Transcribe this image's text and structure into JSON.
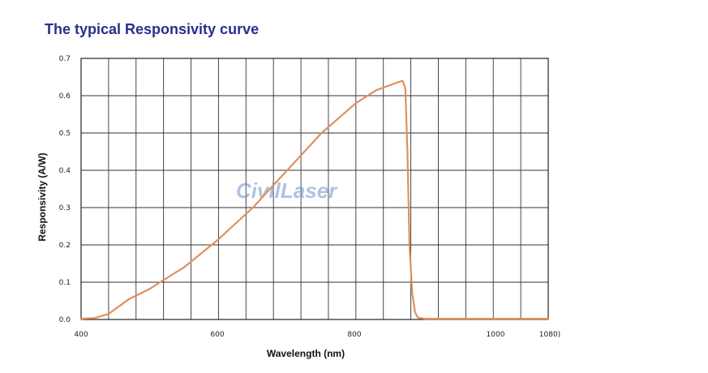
{
  "page": {
    "title": "The typical Responsivity curve",
    "watermark": "CivilLaser"
  },
  "chart_data": {
    "type": "line",
    "title": "The typical Responsivity curve",
    "xlabel": "Wavelength (nm)",
    "ylabel": "Responsivity (A/W)",
    "xlim": [
      400,
      1080
    ],
    "ylim": [
      0,
      0.7
    ],
    "x_tick_labels": [
      "400",
      "600",
      "800",
      "1000",
      "1080)"
    ],
    "x_tick_values": [
      400,
      600,
      800,
      1000,
      1080
    ],
    "y_tick_labels": [
      "0.0",
      "0.1",
      "0.2",
      "0.3",
      "0.4",
      "0.5",
      "0.6",
      "0.7"
    ],
    "y_tick_values": [
      0,
      0.1,
      0.2,
      0.3,
      0.4,
      0.5,
      0.6,
      0.7
    ],
    "grid": true,
    "line_color": "#e0905c",
    "series": [
      {
        "x": [
          400,
          420,
          440,
          470,
          500,
          515,
          550,
          600,
          650,
          700,
          750,
          800,
          830,
          860,
          868,
          872,
          875,
          878,
          882,
          886,
          890,
          900,
          950,
          1000,
          1080
        ],
        "y": [
          0.002,
          0.004,
          0.015,
          0.055,
          0.082,
          0.1,
          0.14,
          0.215,
          0.3,
          0.4,
          0.5,
          0.58,
          0.615,
          0.635,
          0.64,
          0.62,
          0.45,
          0.2,
          0.07,
          0.02,
          0.005,
          0.002,
          0.002,
          0.002,
          0.002
        ]
      }
    ]
  }
}
